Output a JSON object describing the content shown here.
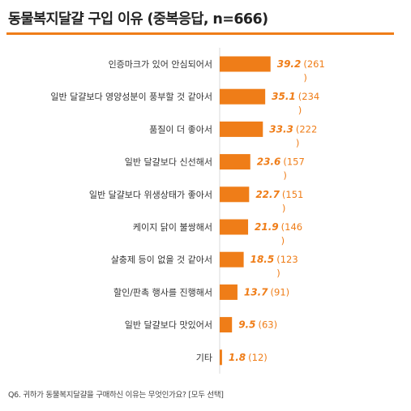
{
  "title": "동물복지달걀 구입 이유 (중복응답, n=666)",
  "footnote": "Q6. 귀하가 동물복지달걀을 구매하신 이유는 무엇인가요? [모두 선택]",
  "colors": {
    "accent": "#ef7d18",
    "axis": "#d9d9d9"
  },
  "chart_data": {
    "type": "bar",
    "orientation": "horizontal",
    "categories": [
      "인증마크가 있어 안심되어서",
      "일반 달걀보다 영양성분이 풍부할 것 같아서",
      "품질이 더 좋아서",
      "일반 달걀보다 신선해서",
      "일반 달걀보다 위생상태가 좋아서",
      "케이지 닭이 불쌍해서",
      "살충제 등이 없을 것 같아서",
      "할인/판촉 행사를 진행해서",
      "일반 달걀보다 맛있어서",
      "기타"
    ],
    "values": [
      39.2,
      35.1,
      33.3,
      23.6,
      22.7,
      21.9,
      18.5,
      13.7,
      9.5,
      1.8
    ],
    "counts": [
      261,
      234,
      222,
      157,
      151,
      146,
      123,
      91,
      63,
      12
    ],
    "count_labels": [
      [
        "(261",
        ")"
      ],
      [
        "(234",
        ")"
      ],
      [
        "(222",
        ")"
      ],
      [
        "(157",
        ")"
      ],
      [
        "(151",
        ")"
      ],
      [
        "(146",
        ")"
      ],
      [
        "(123",
        ")"
      ],
      [
        "(91)"
      ],
      [
        "(63)"
      ],
      [
        "(12)"
      ]
    ]
  }
}
